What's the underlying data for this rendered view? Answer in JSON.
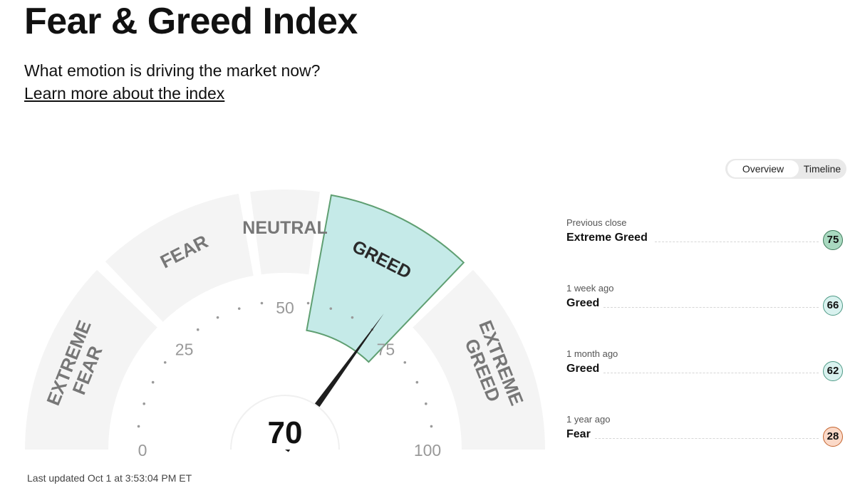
{
  "page": {
    "title": "Fear & Greed Index",
    "subtitle": "What emotion is driving the market now?",
    "learn_more": "Learn more about the index"
  },
  "toggle": {
    "overview": "Overview",
    "timeline": "Timeline",
    "selected": "Overview"
  },
  "gauge": {
    "value": 70,
    "value_text": "70",
    "current_segment": "GREED",
    "segments": [
      {
        "id": "extreme-fear",
        "lines": [
          "EXTREME",
          "FEAR"
        ]
      },
      {
        "id": "fear",
        "lines": [
          "FEAR"
        ]
      },
      {
        "id": "neutral",
        "lines": [
          "NEUTRAL"
        ]
      },
      {
        "id": "greed",
        "lines": [
          "GREED"
        ]
      },
      {
        "id": "extreme-greed",
        "lines": [
          "EXTREME",
          "GREED"
        ]
      }
    ],
    "scale_labels": [
      {
        "value": 0,
        "text": "0"
      },
      {
        "value": 25,
        "text": "25"
      },
      {
        "value": 50,
        "text": "50"
      },
      {
        "value": 75,
        "text": "75"
      },
      {
        "value": 100,
        "text": "100"
      }
    ],
    "colors": {
      "segment": "#f4f4f4",
      "active_fill": "#c5eae8",
      "active_stroke": "#5f9f72",
      "label": "#777777",
      "needle": "#1e1e1e"
    }
  },
  "history": [
    {
      "label": "Previous close",
      "rating": "Extreme Greed",
      "value": "75",
      "badge_bg": "#a9d9c0",
      "badge_border": "#3d7a5a"
    },
    {
      "label": "1 week ago",
      "rating": "Greed",
      "value": "66",
      "badge_bg": "#d9f2ef",
      "badge_border": "#4f9a86"
    },
    {
      "label": "1 month ago",
      "rating": "Greed",
      "value": "62",
      "badge_bg": "#d9f2ef",
      "badge_border": "#4f9a86"
    },
    {
      "label": "1 year ago",
      "rating": "Fear",
      "value": "28",
      "badge_bg": "#fbd9c8",
      "badge_border": "#c5652f"
    }
  ],
  "last_updated": "Last updated Oct 1 at 3:53:04 PM ET"
}
